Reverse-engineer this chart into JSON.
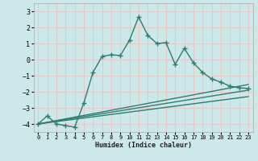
{
  "title": "",
  "xlabel": "Humidex (Indice chaleur)",
  "background_color": "#cce8e8",
  "grid_color": "#e8c8c8",
  "line_color": "#2e7d6e",
  "xlim": [
    -0.5,
    23.5
  ],
  "ylim": [
    -4.5,
    3.5
  ],
  "yticks": [
    -4,
    -3,
    -2,
    -1,
    0,
    1,
    2,
    3
  ],
  "xticks": [
    0,
    1,
    2,
    3,
    4,
    5,
    6,
    7,
    8,
    9,
    10,
    11,
    12,
    13,
    14,
    15,
    16,
    17,
    18,
    19,
    20,
    21,
    22,
    23
  ],
  "main_line_x": [
    0,
    1,
    2,
    3,
    4,
    5,
    6,
    7,
    8,
    9,
    10,
    11,
    12,
    13,
    14,
    15,
    16,
    17,
    18,
    19,
    20,
    21,
    22,
    23
  ],
  "main_line_y": [
    -4.0,
    -3.5,
    -4.0,
    -4.1,
    -4.2,
    -2.7,
    -0.8,
    0.2,
    0.3,
    0.25,
    1.2,
    2.65,
    1.5,
    1.0,
    1.05,
    -0.3,
    0.7,
    -0.2,
    -0.8,
    -1.2,
    -1.4,
    -1.65,
    -1.75,
    -1.8
  ],
  "line2_x": [
    0,
    23
  ],
  "line2_y": [
    -4.0,
    -1.55
  ],
  "line3_x": [
    0,
    23
  ],
  "line3_y": [
    -4.0,
    -1.9
  ],
  "line4_x": [
    0,
    23
  ],
  "line4_y": [
    -4.0,
    -2.3
  ]
}
